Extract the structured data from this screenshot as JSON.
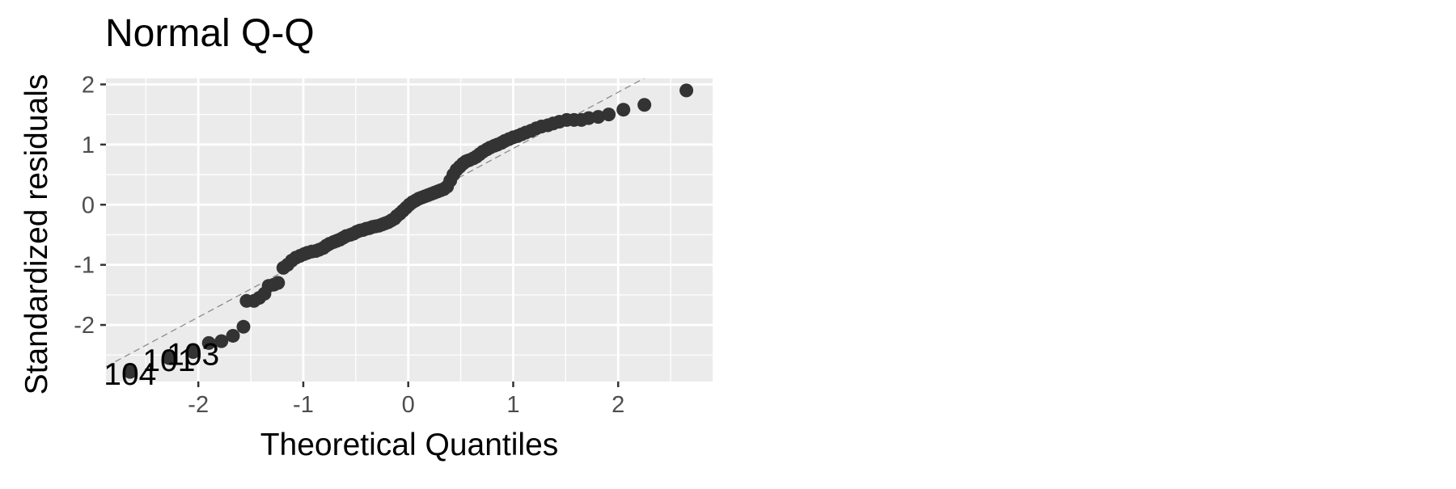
{
  "chart_data": {
    "type": "scatter",
    "title": "Normal Q-Q",
    "xlabel": "Theoretical Quantiles",
    "ylabel": "Standardized residuals",
    "xlim": [
      -2.88,
      2.9
    ],
    "ylim": [
      -2.94,
      2.1
    ],
    "x_ticks": [
      -2,
      -1,
      0,
      1,
      2
    ],
    "x_tick_labels": [
      "-2",
      "-1",
      "0",
      "1",
      "2"
    ],
    "y_ticks": [
      -2,
      -1,
      0,
      1,
      2
    ],
    "y_tick_labels": [
      "-2",
      "-1",
      "0",
      "1",
      "2"
    ],
    "grid": true,
    "reference_line": {
      "slope": 0.935,
      "intercept": 0.0
    },
    "points": [
      [
        -2.65,
        -2.78
      ],
      [
        -2.28,
        -2.55
      ],
      [
        -2.05,
        -2.45
      ],
      [
        -1.9,
        -2.3
      ],
      [
        -1.78,
        -2.27
      ],
      [
        -1.67,
        -2.18
      ],
      [
        -1.57,
        -2.03
      ],
      [
        -1.54,
        -1.6
      ],
      [
        -1.47,
        -1.6
      ],
      [
        -1.42,
        -1.55
      ],
      [
        -1.37,
        -1.48
      ],
      [
        -1.33,
        -1.35
      ],
      [
        -1.28,
        -1.33
      ],
      [
        -1.24,
        -1.3
      ],
      [
        -1.19,
        -1.05
      ],
      [
        -1.15,
        -1.0
      ],
      [
        -1.11,
        -0.93
      ],
      [
        -1.07,
        -0.88
      ],
      [
        -1.03,
        -0.85
      ],
      [
        -0.99,
        -0.82
      ],
      [
        -0.96,
        -0.8
      ],
      [
        -0.92,
        -0.78
      ],
      [
        -0.88,
        -0.77
      ],
      [
        -0.85,
        -0.75
      ],
      [
        -0.81,
        -0.72
      ],
      [
        -0.78,
        -0.68
      ],
      [
        -0.75,
        -0.65
      ],
      [
        -0.71,
        -0.62
      ],
      [
        -0.68,
        -0.6
      ],
      [
        -0.65,
        -0.58
      ],
      [
        -0.62,
        -0.55
      ],
      [
        -0.59,
        -0.52
      ],
      [
        -0.55,
        -0.5
      ],
      [
        -0.52,
        -0.48
      ],
      [
        -0.49,
        -0.45
      ],
      [
        -0.46,
        -0.43
      ],
      [
        -0.43,
        -0.42
      ],
      [
        -0.4,
        -0.4
      ],
      [
        -0.37,
        -0.39
      ],
      [
        -0.34,
        -0.37
      ],
      [
        -0.31,
        -0.36
      ],
      [
        -0.28,
        -0.35
      ],
      [
        -0.25,
        -0.33
      ],
      [
        -0.22,
        -0.31
      ],
      [
        -0.19,
        -0.29
      ],
      [
        -0.16,
        -0.26
      ],
      [
        -0.13,
        -0.23
      ],
      [
        -0.11,
        -0.19
      ],
      [
        -0.08,
        -0.15
      ],
      [
        -0.05,
        -0.1
      ],
      [
        -0.02,
        -0.05
      ],
      [
        0.01,
        0.0
      ],
      [
        0.04,
        0.04
      ],
      [
        0.07,
        0.07
      ],
      [
        0.1,
        0.1
      ],
      [
        0.13,
        0.12
      ],
      [
        0.16,
        0.14
      ],
      [
        0.19,
        0.16
      ],
      [
        0.22,
        0.18
      ],
      [
        0.25,
        0.2
      ],
      [
        0.28,
        0.22
      ],
      [
        0.31,
        0.24
      ],
      [
        0.34,
        0.26
      ],
      [
        0.37,
        0.3
      ],
      [
        0.4,
        0.4
      ],
      [
        0.43,
        0.5
      ],
      [
        0.46,
        0.58
      ],
      [
        0.49,
        0.63
      ],
      [
        0.52,
        0.68
      ],
      [
        0.55,
        0.72
      ],
      [
        0.58,
        0.74
      ],
      [
        0.62,
        0.77
      ],
      [
        0.65,
        0.8
      ],
      [
        0.68,
        0.84
      ],
      [
        0.71,
        0.88
      ],
      [
        0.75,
        0.92
      ],
      [
        0.78,
        0.95
      ],
      [
        0.82,
        0.98
      ],
      [
        0.85,
        1.0
      ],
      [
        0.89,
        1.03
      ],
      [
        0.92,
        1.06
      ],
      [
        0.96,
        1.09
      ],
      [
        1.0,
        1.12
      ],
      [
        1.04,
        1.14
      ],
      [
        1.08,
        1.17
      ],
      [
        1.12,
        1.2
      ],
      [
        1.17,
        1.23
      ],
      [
        1.22,
        1.27
      ],
      [
        1.27,
        1.3
      ],
      [
        1.33,
        1.32
      ],
      [
        1.38,
        1.35
      ],
      [
        1.44,
        1.38
      ],
      [
        1.51,
        1.41
      ],
      [
        1.58,
        1.41
      ],
      [
        1.65,
        1.41
      ],
      [
        1.72,
        1.44
      ],
      [
        1.81,
        1.46
      ],
      [
        1.91,
        1.5
      ],
      [
        2.05,
        1.58
      ],
      [
        2.25,
        1.66
      ],
      [
        2.65,
        1.9
      ]
    ],
    "annotations": [
      {
        "text": "104",
        "x": -2.65,
        "y": -2.78
      },
      {
        "text": "101",
        "x": -2.28,
        "y": -2.55
      },
      {
        "text": "103",
        "x": -2.05,
        "y": -2.45
      }
    ]
  }
}
